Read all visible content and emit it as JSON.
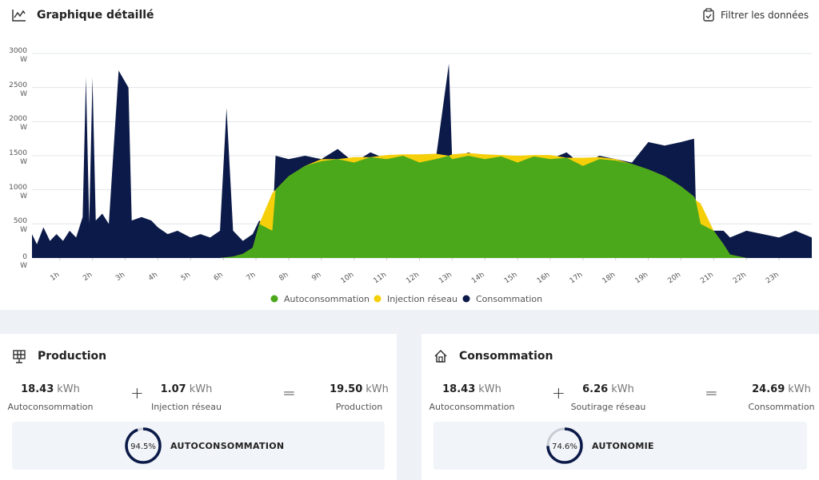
{
  "header": {
    "title": "Graphique détaillé",
    "filter": "Filtrer les données"
  },
  "chart_data": {
    "type": "area",
    "xlim": [
      0.15,
      24
    ],
    "ylim": [
      0,
      3000
    ],
    "yticks": [
      {
        "value": 0,
        "label": "0 W"
      },
      {
        "value": 500,
        "label": "500 W"
      },
      {
        "value": 1000,
        "label": "1000 W"
      },
      {
        "value": 1500,
        "label": "1500 W"
      },
      {
        "value": 2000,
        "label": "2000 W"
      },
      {
        "value": 2500,
        "label": "2500 W"
      },
      {
        "value": 3000,
        "label": "3000 W"
      }
    ],
    "xticks": [
      {
        "value": 1,
        "label": "1h"
      },
      {
        "value": 2,
        "label": "2h"
      },
      {
        "value": 3,
        "label": "3h"
      },
      {
        "value": 4,
        "label": "4h"
      },
      {
        "value": 5,
        "label": "5h"
      },
      {
        "value": 6,
        "label": "6h"
      },
      {
        "value": 7,
        "label": "7h"
      },
      {
        "value": 8,
        "label": "8h"
      },
      {
        "value": 9,
        "label": "9h"
      },
      {
        "value": 10,
        "label": "10h"
      },
      {
        "value": 11,
        "label": "11h"
      },
      {
        "value": 12,
        "label": "12h"
      },
      {
        "value": 13,
        "label": "13h"
      },
      {
        "value": 14,
        "label": "14h"
      },
      {
        "value": 15,
        "label": "15h"
      },
      {
        "value": 16,
        "label": "16h"
      },
      {
        "value": 17,
        "label": "17h"
      },
      {
        "value": 18,
        "label": "18h"
      },
      {
        "value": 19,
        "label": "19h"
      },
      {
        "value": 20,
        "label": "20h"
      },
      {
        "value": 21,
        "label": "21h"
      },
      {
        "value": 22,
        "label": "22h"
      },
      {
        "value": 23,
        "label": "23h"
      }
    ],
    "grid": true,
    "x": [
      0.15,
      0.3,
      0.5,
      0.7,
      0.9,
      1.1,
      1.3,
      1.5,
      1.7,
      1.8,
      1.9,
      2.0,
      2.1,
      2.3,
      2.5,
      2.8,
      3.1,
      3.2,
      3.5,
      3.8,
      4.0,
      4.3,
      4.6,
      5.0,
      5.3,
      5.6,
      5.9,
      6.1,
      6.3,
      6.6,
      6.9,
      7.1,
      7.5,
      7.6,
      8.0,
      8.5,
      9.0,
      9.5,
      10,
      10.5,
      11,
      11.5,
      12,
      12.5,
      12.9,
      13,
      13.5,
      14,
      14.5,
      15,
      15.5,
      16,
      16.5,
      17,
      17.5,
      18,
      18.5,
      19,
      19.5,
      20,
      20.4,
      20.45,
      20.6,
      21,
      21.3,
      21.5,
      22,
      22.5,
      23,
      23.5,
      24
    ],
    "series": [
      {
        "name": "Autoconsommation",
        "color": "#4ca81b",
        "values": [
          0,
          0,
          0,
          0,
          0,
          0,
          0,
          0,
          0,
          0,
          0,
          0,
          0,
          0,
          0,
          0,
          0,
          0,
          0,
          0,
          0,
          0,
          0,
          0,
          0,
          0,
          0,
          10,
          20,
          60,
          150,
          500,
          400,
          1000,
          1200,
          1350,
          1420,
          1450,
          1400,
          1480,
          1450,
          1500,
          1400,
          1450,
          1500,
          1450,
          1500,
          1450,
          1490,
          1400,
          1490,
          1450,
          1470,
          1350,
          1450,
          1430,
          1380,
          1300,
          1200,
          1050,
          900,
          850,
          500,
          400,
          200,
          50,
          0,
          0,
          0,
          0,
          0
        ]
      },
      {
        "name": "Injection réseau",
        "color": "#f5cf0a",
        "values": [
          0,
          0,
          0,
          0,
          0,
          0,
          0,
          0,
          0,
          0,
          0,
          0,
          0,
          0,
          0,
          0,
          0,
          0,
          0,
          0,
          0,
          0,
          0,
          0,
          0,
          0,
          0,
          0,
          0,
          0,
          0,
          0,
          550,
          0,
          0,
          0,
          30,
          0,
          80,
          0,
          60,
          20,
          120,
          80,
          0,
          70,
          40,
          70,
          20,
          100,
          20,
          60,
          0,
          120,
          30,
          20,
          0,
          0,
          0,
          0,
          0,
          0,
          300,
          0,
          0,
          0,
          0,
          0,
          0,
          0,
          0
        ]
      },
      {
        "name": "Consommation",
        "color": "#0b1a48",
        "values": [
          350,
          200,
          450,
          250,
          350,
          250,
          400,
          300,
          600,
          2650,
          500,
          2650,
          550,
          650,
          500,
          2750,
          2500,
          550,
          600,
          550,
          450,
          350,
          400,
          300,
          350,
          300,
          400,
          2200,
          400,
          250,
          350,
          550,
          400,
          1500,
          1450,
          1500,
          1450,
          1600,
          1400,
          1550,
          1450,
          1500,
          1400,
          1450,
          2850,
          1450,
          1550,
          1450,
          1500,
          1400,
          1500,
          1450,
          1550,
          1350,
          1500,
          1450,
          1400,
          1700,
          1650,
          1700,
          1750,
          850,
          500,
          400,
          400,
          300,
          400,
          350,
          300,
          400,
          300
        ]
      }
    ]
  },
  "panels": [
    {
      "title": "Production",
      "plus": "+",
      "equals": "=",
      "items": [
        {
          "value": "18.43",
          "unit": "kWh",
          "label": "Autoconsommation"
        },
        {
          "value": "1.07",
          "unit": "kWh",
          "label": "Injection réseau"
        },
        {
          "value": "19.50",
          "unit": "kWh",
          "label": "Production"
        }
      ],
      "gauge": {
        "value": 94.5,
        "label": "94.5%",
        "title": "AUTOCONSOMMATION"
      }
    },
    {
      "title": "Consommation",
      "plus": "+",
      "equals": "=",
      "items": [
        {
          "value": "18.43",
          "unit": "kWh",
          "label": "Autoconsommation"
        },
        {
          "value": "6.26",
          "unit": "kWh",
          "label": "Soutirage réseau"
        },
        {
          "value": "24.69",
          "unit": "kWh",
          "label": "Consommation"
        }
      ],
      "gauge": {
        "value": 74.6,
        "label": "74.6%",
        "title": "AUTONOMIE"
      }
    }
  ]
}
